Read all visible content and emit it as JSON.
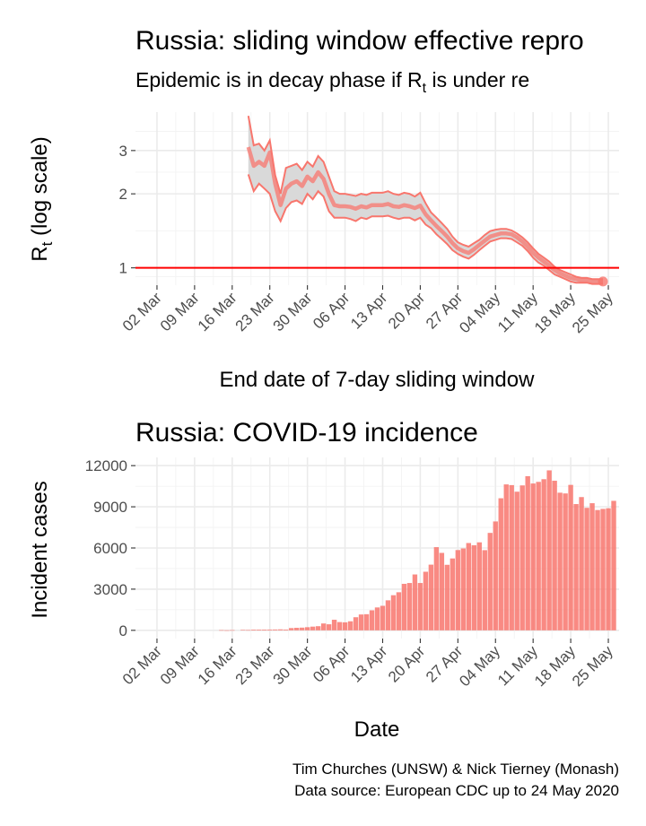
{
  "caption": {
    "line1": "Tim Churches (UNSW) & Nick Tierney (Monash)",
    "line2": "Data source: European CDC up to 24 May 2020"
  },
  "colors": {
    "accent": "#f8766d",
    "threshold": "#ff0000",
    "ribbon": "#d9d9d9"
  },
  "chart_data": [
    {
      "type": "line",
      "title": "Russia: sliding window effective repro",
      "subtitle_prefix": "Epidemic is in decay phase if R",
      "subtitle_sub": "t",
      "subtitle_suffix": "  is under re",
      "ylabel_main": "R",
      "ylabel_sub": "t",
      "ylabel_suffix": " (log scale)",
      "xlabel": "End date of 7-day sliding window",
      "y_scale": "log",
      "ylim": [
        0.85,
        4.3
      ],
      "y_ticks": [
        1,
        2,
        3
      ],
      "y_tick_labels": [
        "1",
        "2",
        "3"
      ],
      "x_range": [
        "2020-02-27",
        "2020-05-27"
      ],
      "x_ticks": [
        "2020-03-02",
        "2020-03-09",
        "2020-03-16",
        "2020-03-23",
        "2020-03-30",
        "2020-04-06",
        "2020-04-13",
        "2020-04-20",
        "2020-04-27",
        "2020-05-04",
        "2020-05-11",
        "2020-05-18",
        "2020-05-25"
      ],
      "x_tick_labels": [
        "02 Mar",
        "09 Mar",
        "16 Mar",
        "23 Mar",
        "30 Mar",
        "06 Apr",
        "13 Apr",
        "20 Apr",
        "27 Apr",
        "04 May",
        "11 May",
        "18 May",
        "25 May"
      ],
      "threshold": 1,
      "grid": true,
      "x": [
        "2020-03-19",
        "2020-03-20",
        "2020-03-21",
        "2020-03-22",
        "2020-03-23",
        "2020-03-24",
        "2020-03-25",
        "2020-03-26",
        "2020-03-27",
        "2020-03-28",
        "2020-03-29",
        "2020-03-30",
        "2020-03-31",
        "2020-04-01",
        "2020-04-02",
        "2020-04-03",
        "2020-04-04",
        "2020-04-05",
        "2020-04-06",
        "2020-04-07",
        "2020-04-08",
        "2020-04-09",
        "2020-04-10",
        "2020-04-11",
        "2020-04-12",
        "2020-04-13",
        "2020-04-14",
        "2020-04-15",
        "2020-04-16",
        "2020-04-17",
        "2020-04-18",
        "2020-04-19",
        "2020-04-20",
        "2020-04-21",
        "2020-04-22",
        "2020-04-23",
        "2020-04-24",
        "2020-04-25",
        "2020-04-26",
        "2020-04-27",
        "2020-04-28",
        "2020-04-29",
        "2020-04-30",
        "2020-05-01",
        "2020-05-02",
        "2020-05-03",
        "2020-05-04",
        "2020-05-05",
        "2020-05-06",
        "2020-05-07",
        "2020-05-08",
        "2020-05-09",
        "2020-05-10",
        "2020-05-11",
        "2020-05-12",
        "2020-05-13",
        "2020-05-14",
        "2020-05-15",
        "2020-05-16",
        "2020-05-17",
        "2020-05-18",
        "2020-05-19",
        "2020-05-20",
        "2020-05-21",
        "2020-05-22",
        "2020-05-23",
        "2020-05-24"
      ],
      "mean": [
        3.1,
        2.6,
        2.7,
        2.6,
        2.95,
        2.2,
        1.8,
        2.1,
        2.2,
        2.25,
        2.15,
        2.35,
        2.25,
        2.45,
        2.3,
        2.0,
        1.8,
        1.78,
        1.78,
        1.77,
        1.74,
        1.78,
        1.76,
        1.8,
        1.8,
        1.8,
        1.82,
        1.78,
        1.77,
        1.8,
        1.78,
        1.75,
        1.79,
        1.65,
        1.56,
        1.48,
        1.41,
        1.34,
        1.26,
        1.2,
        1.17,
        1.15,
        1.19,
        1.24,
        1.29,
        1.34,
        1.36,
        1.38,
        1.38,
        1.37,
        1.33,
        1.28,
        1.22,
        1.15,
        1.1,
        1.06,
        1.02,
        0.98,
        0.95,
        0.93,
        0.91,
        0.9,
        0.89,
        0.89,
        0.88,
        0.88,
        0.88
      ],
      "upper": [
        4.15,
        3.15,
        3.2,
        3.0,
        3.3,
        2.38,
        2.0,
        2.55,
        2.6,
        2.65,
        2.5,
        2.7,
        2.58,
        2.85,
        2.7,
        2.35,
        2.05,
        2.0,
        2.0,
        1.98,
        1.96,
        2.0,
        1.98,
        2.02,
        2.02,
        2.02,
        2.05,
        2.0,
        1.98,
        2.02,
        2.0,
        1.95,
        2.02,
        1.83,
        1.68,
        1.6,
        1.52,
        1.44,
        1.34,
        1.27,
        1.24,
        1.22,
        1.26,
        1.3,
        1.36,
        1.41,
        1.43,
        1.44,
        1.44,
        1.42,
        1.38,
        1.33,
        1.27,
        1.2,
        1.14,
        1.1,
        1.06,
        1.01,
        0.98,
        0.96,
        0.94,
        0.92,
        0.91,
        0.91,
        0.9,
        0.9,
        0.9
      ],
      "lower": [
        2.4,
        2.05,
        2.2,
        2.1,
        2.0,
        1.7,
        1.55,
        1.75,
        1.85,
        1.88,
        1.82,
        2.0,
        1.9,
        2.05,
        1.95,
        1.7,
        1.6,
        1.6,
        1.6,
        1.58,
        1.55,
        1.6,
        1.58,
        1.62,
        1.62,
        1.62,
        1.63,
        1.6,
        1.58,
        1.6,
        1.6,
        1.56,
        1.6,
        1.5,
        1.45,
        1.37,
        1.31,
        1.25,
        1.18,
        1.14,
        1.11,
        1.09,
        1.13,
        1.18,
        1.23,
        1.28,
        1.3,
        1.32,
        1.32,
        1.31,
        1.27,
        1.23,
        1.17,
        1.1,
        1.05,
        1.02,
        0.98,
        0.94,
        0.92,
        0.9,
        0.88,
        0.87,
        0.87,
        0.87,
        0.86,
        0.86,
        0.86
      ],
      "last_point": {
        "x": "2020-05-24",
        "y": 0.88
      }
    },
    {
      "type": "bar",
      "title": "Russia: COVID-19 incidence",
      "xlabel": "Date",
      "ylabel": "Incident cases",
      "ylim": [
        -600,
        12600
      ],
      "y_ticks": [
        0,
        3000,
        6000,
        9000,
        12000
      ],
      "y_tick_labels": [
        "0",
        "3000",
        "6000",
        "9000",
        "12000"
      ],
      "x_range": [
        "2020-02-27",
        "2020-05-27"
      ],
      "x_ticks": [
        "2020-03-02",
        "2020-03-09",
        "2020-03-16",
        "2020-03-23",
        "2020-03-30",
        "2020-04-06",
        "2020-04-13",
        "2020-04-20",
        "2020-04-27",
        "2020-05-04",
        "2020-05-11",
        "2020-05-18",
        "2020-05-25"
      ],
      "x_tick_labels": [
        "02 Mar",
        "09 Mar",
        "16 Mar",
        "23 Mar",
        "30 Mar",
        "06 Apr",
        "13 Apr",
        "20 Apr",
        "27 Apr",
        "04 May",
        "11 May",
        "18 May",
        "25 May"
      ],
      "grid": true,
      "first_date": "2020-03-01",
      "values": [
        0,
        0,
        0,
        0,
        0,
        0,
        0,
        0,
        0,
        0,
        0,
        0,
        0,
        14,
        4,
        15,
        0,
        30,
        21,
        52,
        53,
        54,
        57,
        61,
        71,
        57,
        163,
        182,
        196,
        228,
        270,
        302,
        500,
        440,
        770,
        601,
        582,
        658,
        954,
        1154,
        1175,
        1459,
        1667,
        1786,
        2186,
        2558,
        2774,
        3388,
        3448,
        4070,
        3448,
        4268,
        4785,
        6060,
        5642,
        4774,
        5236,
        5849,
        5966,
        6361,
        6198,
        6411,
        5841,
        7099,
        7933,
        9623,
        10633,
        10581,
        10102,
        10559,
        11231,
        10699,
        10817,
        11012,
        11656,
        10899,
        10028,
        9974,
        10598,
        9200,
        9709,
        8926,
        9263,
        8764,
        8849,
        8894,
        9434
      ]
    }
  ]
}
